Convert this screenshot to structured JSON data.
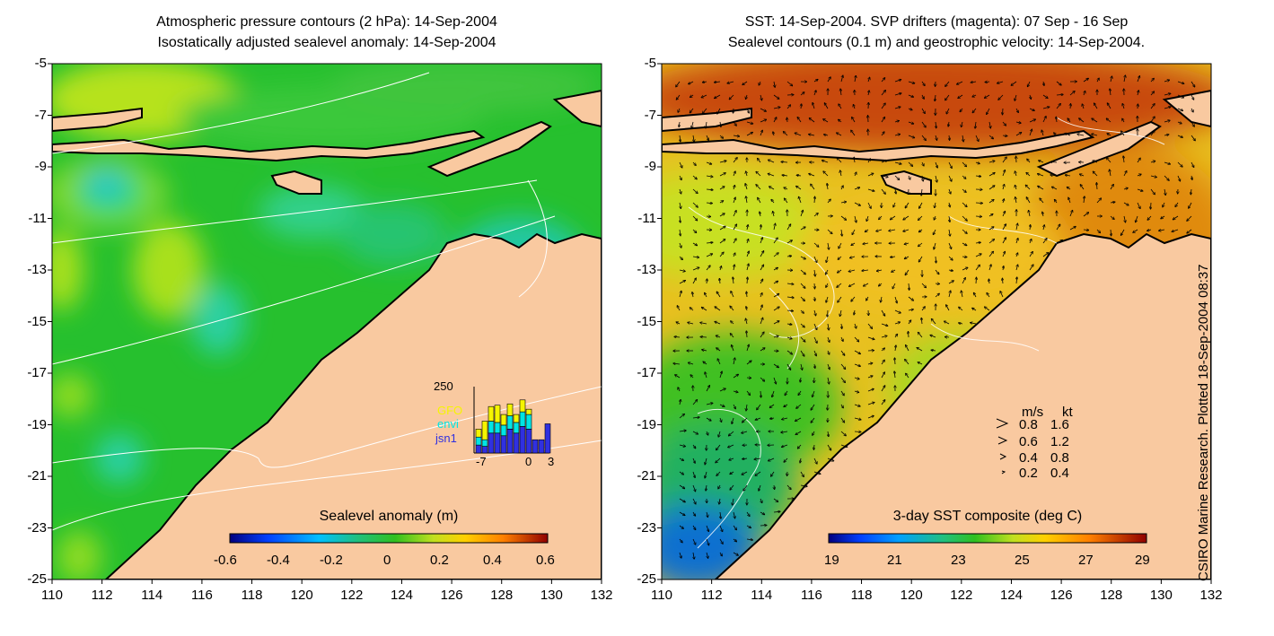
{
  "left_panel": {
    "title_line1": "Atmospheric pressure contours (2 hPa): 14-Sep-2004",
    "title_line2": "Isostatically adjusted sealevel anomaly: 14-Sep-2004",
    "colorbar": {
      "label": "Sealevel anomaly (m)",
      "ticks": [
        "-0.6",
        "-0.4",
        "-0.2",
        "0",
        "0.2",
        "0.4",
        "0.6"
      ],
      "range": [
        -0.6,
        0.6
      ]
    },
    "inset": {
      "y_max_label": "250",
      "x_ticks": [
        "-7",
        "0",
        "3"
      ],
      "legend": [
        {
          "label": "GFO",
          "color": "#f5f500"
        },
        {
          "label": "envi",
          "color": "#00e5e5"
        },
        {
          "label": "jsn1",
          "color": "#3030e0"
        }
      ],
      "bars": [
        {
          "jsn1": 0.12,
          "envi": 0.12,
          "gfo": 0.12
        },
        {
          "jsn1": 0.1,
          "envi": 0.1,
          "gfo": 0.28
        },
        {
          "jsn1": 0.3,
          "envi": 0.18,
          "gfo": 0.22
        },
        {
          "jsn1": 0.3,
          "envi": 0.16,
          "gfo": 0.26
        },
        {
          "jsn1": 0.26,
          "envi": 0.16,
          "gfo": 0.16
        },
        {
          "jsn1": 0.36,
          "envi": 0.2,
          "gfo": 0.18
        },
        {
          "jsn1": 0.3,
          "envi": 0.16,
          "gfo": 0.12
        },
        {
          "jsn1": 0.4,
          "envi": 0.22,
          "gfo": 0.18
        },
        {
          "jsn1": 0.36,
          "envi": 0.22,
          "gfo": 0.08
        },
        {
          "jsn1": 0.2,
          "envi": 0.0,
          "gfo": 0.0
        },
        {
          "jsn1": 0.2,
          "envi": 0.0,
          "gfo": 0.0
        },
        {
          "jsn1": 0.44,
          "envi": 0.0,
          "gfo": 0.0
        }
      ]
    }
  },
  "right_panel": {
    "title_line1": "SST: 14-Sep-2004. SVP drifters (magenta): 07 Sep - 16 Sep",
    "title_line2": "Sealevel contours (0.1 m) and geostrophic velocity: 14-Sep-2004.",
    "colorbar": {
      "label": "3-day SST composite (deg C)",
      "ticks": [
        "19",
        "21",
        "23",
        "25",
        "27",
        "29"
      ],
      "range": [
        19,
        29
      ]
    },
    "velocity_legend": {
      "header_ms": "m/s",
      "header_kt": "kt",
      "rows": [
        {
          "ms": "0.8",
          "kt": "1.6"
        },
        {
          "ms": "0.6",
          "kt": "1.2"
        },
        {
          "ms": "0.4",
          "kt": "0.8"
        },
        {
          "ms": "0.2",
          "kt": "0.4"
        }
      ]
    }
  },
  "axes": {
    "y_ticks": [
      "-5",
      "-7",
      "-9",
      "-11",
      "-13",
      "-15",
      "-17",
      "-19",
      "-21",
      "-23",
      "-25"
    ],
    "x_ticks": [
      "110",
      "112",
      "114",
      "116",
      "118",
      "120",
      "122",
      "124",
      "126",
      "128",
      "130",
      "132"
    ],
    "lon_range": [
      110,
      132
    ],
    "lat_range": [
      -25,
      -5
    ]
  },
  "credit": "CSIRO Marine Research. Plotted 18-Sep-2004 08:37",
  "colors": {
    "land": "#f9c9a0",
    "coast": "#000000",
    "contour": "#ffffff"
  }
}
